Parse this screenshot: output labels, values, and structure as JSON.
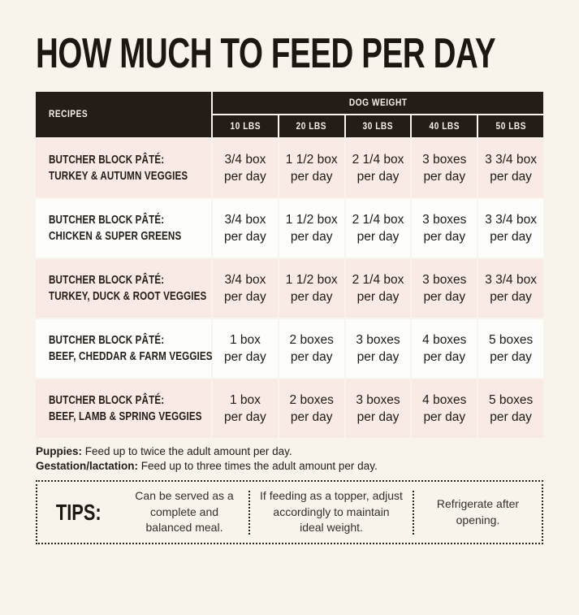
{
  "page": {
    "title": "HOW MUCH TO FEED PER DAY"
  },
  "colors": {
    "page_background": "#f8f4ec",
    "header_background": "#241c16",
    "header_text": "#f7f2ea",
    "row_pink": "#f9eae3",
    "row_white": "#fdfdfb",
    "text": "#221c16"
  },
  "table": {
    "recipes_header": "RECIPES",
    "weight_header": "DOG WEIGHT",
    "weights": [
      "10 LBS",
      "20 LBS",
      "30 LBS",
      "40 LBS",
      "50 LBS"
    ],
    "per_day": "per day",
    "rows": [
      {
        "title": "BUTCHER BLOCK PÂTÉ:",
        "subtitle": "TURKEY & AUTUMN VEGGIES",
        "values": [
          "3/4 box",
          "1 1/2 box",
          "2 1/4 box",
          "3 boxes",
          "3 3/4 box"
        ]
      },
      {
        "title": "BUTCHER BLOCK PÂTÉ:",
        "subtitle": "CHICKEN & SUPER GREENS",
        "values": [
          "3/4 box",
          "1 1/2 box",
          "2 1/4 box",
          "3 boxes",
          "3 3/4 box"
        ]
      },
      {
        "title": "BUTCHER BLOCK PÂTÉ:",
        "subtitle": "TURKEY, DUCK & ROOT VEGGIES",
        "values": [
          "3/4 box",
          "1 1/2 box",
          "2 1/4 box",
          "3 boxes",
          "3 3/4 box"
        ]
      },
      {
        "title": "BUTCHER BLOCK PÂTÉ:",
        "subtitle": "BEEF, CHEDDAR & FARM VEGGIES",
        "values": [
          "1 box",
          "2 boxes",
          "3 boxes",
          "4 boxes",
          "5 boxes"
        ]
      },
      {
        "title": "BUTCHER BLOCK PÂTÉ:",
        "subtitle": "BEEF, LAMB & SPRING VEGGIES",
        "values": [
          "1 box",
          "2 boxes",
          "3 boxes",
          "4 boxes",
          "5 boxes"
        ]
      }
    ]
  },
  "footnotes": [
    {
      "label": "Puppies:",
      "text": " Feed up to twice the adult amount per day."
    },
    {
      "label": "Gestation/lactation:",
      "text": " Feed up to three times the adult amount per day."
    }
  ],
  "tips": {
    "label": "TIPS:",
    "items": [
      "Can be served as a complete and balanced meal.",
      "If feeding as a topper, adjust accordingly to maintain ideal weight.",
      "Refrigerate after opening."
    ]
  },
  "chart_data": {
    "type": "table",
    "title": "HOW MUCH TO FEED PER DAY",
    "columns": [
      "RECIPES",
      "10 LBS",
      "20 LBS",
      "30 LBS",
      "40 LBS",
      "50 LBS"
    ],
    "column_group": {
      "label": "DOG WEIGHT",
      "spans": [
        "10 LBS",
        "20 LBS",
        "30 LBS",
        "40 LBS",
        "50 LBS"
      ]
    },
    "rows": [
      [
        "BUTCHER BLOCK PÂTÉ: TURKEY & AUTUMN VEGGIES",
        "3/4 box per day",
        "1 1/2 box per day",
        "2 1/4 box per day",
        "3 boxes per day",
        "3 3/4 box per day"
      ],
      [
        "BUTCHER BLOCK PÂTÉ: CHICKEN & SUPER GREENS",
        "3/4 box per day",
        "1 1/2 box per day",
        "2 1/4 box per day",
        "3 boxes per day",
        "3 3/4 box per day"
      ],
      [
        "BUTCHER BLOCK PÂTÉ: TURKEY, DUCK & ROOT VEGGIES",
        "3/4 box per day",
        "1 1/2 box per day",
        "2 1/4 box per day",
        "3 boxes per day",
        "3 3/4 box per day"
      ],
      [
        "BUTCHER BLOCK PÂTÉ: BEEF, CHEDDAR & FARM VEGGIES",
        "1 box per day",
        "2 boxes per day",
        "3 boxes per day",
        "4 boxes per day",
        "5 boxes per day"
      ],
      [
        "BUTCHER BLOCK PÂTÉ: BEEF, LAMB & SPRING VEGGIES",
        "1 box per day",
        "2 boxes per day",
        "3 boxes per day",
        "4 boxes per day",
        "5 boxes per day"
      ]
    ],
    "notes": [
      "Puppies: Feed up to twice the adult amount per day.",
      "Gestation/lactation: Feed up to three times the adult amount per day."
    ]
  }
}
